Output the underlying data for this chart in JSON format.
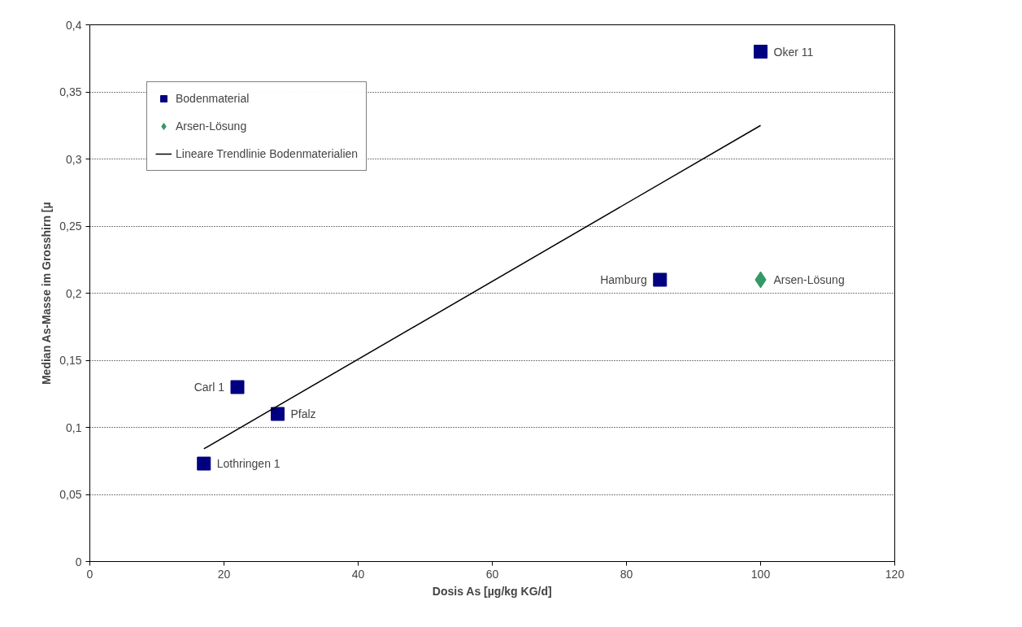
{
  "chart_data": {
    "type": "scatter",
    "xlabel": "Dosis As [µg/kg KG/d]",
    "ylabel": "Median As-Masse im Grosshirn [µ",
    "xlim": [
      0,
      120
    ],
    "xticks": [
      0,
      20,
      40,
      60,
      80,
      100,
      120
    ],
    "ylim": [
      0,
      0.4
    ],
    "yticks": [
      0,
      {
        "value": 0.05,
        "label": "0,05"
      },
      {
        "value": 0.1,
        "label": "0,1"
      },
      {
        "value": 0.15,
        "label": "0,15"
      },
      {
        "value": 0.2,
        "label": "0,2"
      },
      {
        "value": 0.25,
        "label": "0,25"
      },
      {
        "value": 0.3,
        "label": "0,3"
      },
      {
        "value": 0.35,
        "label": "0,35"
      },
      {
        "value": 0.4,
        "label": "0,4"
      }
    ],
    "grid": "y",
    "legend": "top left",
    "series": [
      {
        "name": "Bodenmaterial",
        "marker": "square",
        "color": "#000080",
        "x": [
          100,
          85,
          22,
          28,
          17
        ],
        "values": [
          0.38,
          0.21,
          0.13,
          0.11,
          0.073
        ]
      },
      {
        "name": "Arsen-Lösung",
        "marker": "diamond",
        "color": "#339966",
        "x": [
          100
        ],
        "values": [
          0.21
        ]
      },
      {
        "name": "Lineare Trendlinie Bodenmaterialien",
        "type": "line",
        "marker": "none",
        "color": "#000000",
        "x": [
          17,
          100
        ],
        "values": [
          0.084,
          0.325
        ]
      }
    ],
    "annotations": [
      {
        "text": "Oker 11",
        "x": 100,
        "y": 0.38
      },
      {
        "text": "Hamburg",
        "x": 85,
        "y": 0.21
      },
      {
        "text": "Arsen-Lösung",
        "x": 100,
        "y": 0.21
      },
      {
        "text": "Carl 1",
        "x": 22,
        "y": 0.13
      },
      {
        "text": "Pfalz",
        "x": 28,
        "y": 0.11
      },
      {
        "text": "Lothringen 1",
        "x": 17,
        "y": 0.073
      }
    ]
  }
}
